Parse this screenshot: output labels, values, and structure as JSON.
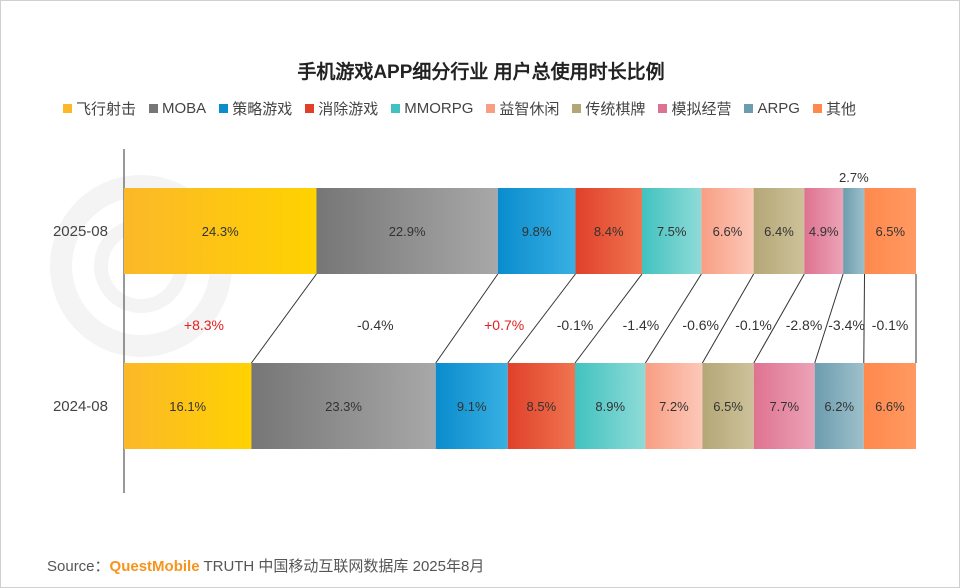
{
  "chart_data": {
    "type": "bar",
    "orientation": "horizontal-stacked-100",
    "title": "手机游戏APP细分行业 用户总使用时长比例",
    "categories": [
      "2025-08",
      "2024-08"
    ],
    "series": [
      {
        "name": "飞行射击",
        "values": [
          24.3,
          16.1
        ],
        "color": "#fbb829",
        "color2": "#ffd200",
        "change": "+8.3%"
      },
      {
        "name": "MOBA",
        "values": [
          22.9,
          23.3
        ],
        "color": "#767676",
        "color2": "#a8a8a8",
        "change": "-0.4%"
      },
      {
        "name": "策略游戏",
        "values": [
          9.8,
          9.1
        ],
        "color": "#0a8ccd",
        "color2": "#38b0e3",
        "change": "+0.7%"
      },
      {
        "name": "消除游戏",
        "values": [
          8.4,
          8.5
        ],
        "color": "#e0402a",
        "color2": "#f0744f",
        "change": "-0.1%"
      },
      {
        "name": "MMORPG",
        "values": [
          7.5,
          8.9
        ],
        "color": "#42c2bf",
        "color2": "#8fdbd8",
        "change": "-1.4%"
      },
      {
        "name": "益智休闲",
        "values": [
          6.6,
          7.2
        ],
        "color": "#f89e84",
        "color2": "#fcc8b8",
        "change": "-0.6%"
      },
      {
        "name": "传统棋牌",
        "values": [
          6.4,
          6.5
        ],
        "color": "#b4a777",
        "color2": "#cdc29a",
        "change": "-0.1%"
      },
      {
        "name": "模拟经营",
        "values": [
          4.9,
          7.7
        ],
        "color": "#de7391",
        "color2": "#eca3b7",
        "change": "-2.8%"
      },
      {
        "name": "ARPG",
        "values": [
          2.7,
          6.2
        ],
        "color": "#6c9dae",
        "color2": "#9dc0cb",
        "change": "-3.4%"
      },
      {
        "name": "其他",
        "values": [
          6.5,
          6.6
        ],
        "color": "#ff884d",
        "color2": "#ff9a62",
        "change": "-0.1%"
      }
    ],
    "positive_change_color": "#e02020",
    "xlim": [
      0,
      100
    ],
    "grid": false,
    "legend_position": "top"
  },
  "watermark": "QUESTMOBILE",
  "source": {
    "label": "Source：",
    "brand": "QuestMobile",
    "text": " TRUTH 中国移动互联网数据库 2025年8月"
  }
}
